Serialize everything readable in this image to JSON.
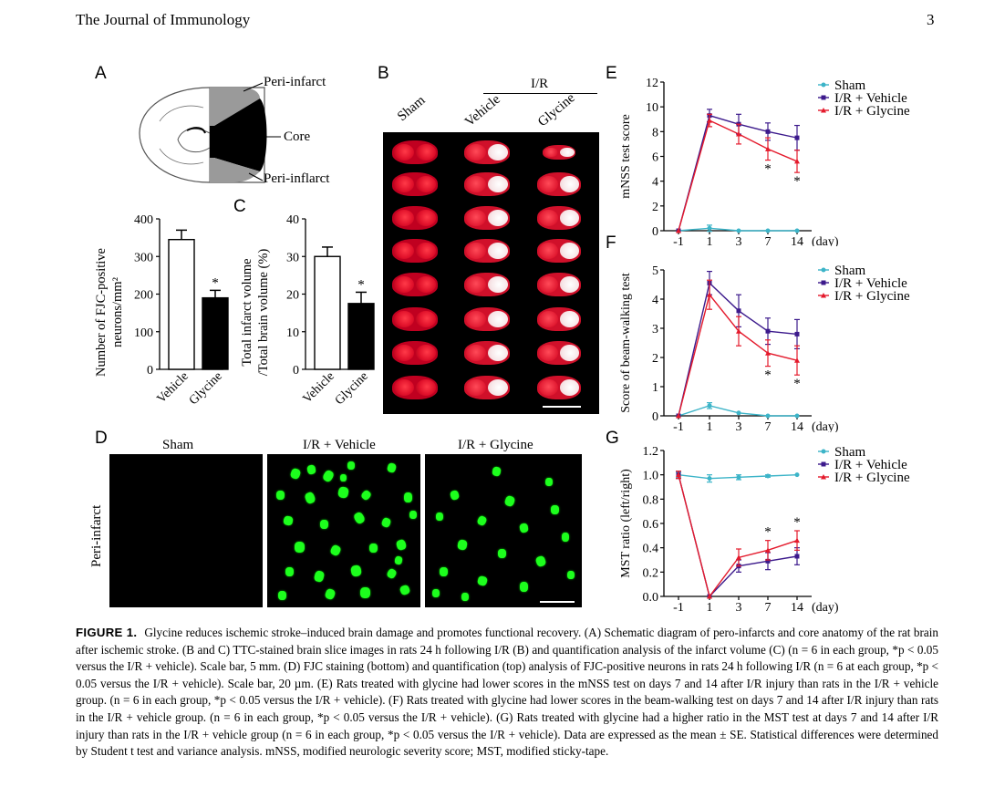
{
  "header": {
    "journal": "The Journal of Immunology",
    "page": "3"
  },
  "panel_labels": {
    "A": "A",
    "B": "B",
    "C": "C",
    "D": "D",
    "E": "E",
    "F": "F",
    "G": "G"
  },
  "panelA": {
    "label_top": "Peri-infarct",
    "label_core": "Core",
    "label_bottom": "Peri-inflarct"
  },
  "panelB": {
    "group_header": "I/R",
    "columns": [
      "Sham",
      "Vehicle",
      "Glycine"
    ]
  },
  "panelD": {
    "columns": [
      "Sham",
      "I/R + Vehicle",
      "I/R + Glycine"
    ],
    "row_label": "Peri-infarct"
  },
  "caption": {
    "figure_label": "FIGURE 1.",
    "text": "Glycine reduces ischemic stroke–induced brain damage and promotes functional recovery. (A) Schematic diagram of pero-infarcts and core anatomy of the rat brain after ischemic stroke. (B and C) TTC-stained brain slice images in rats 24 h following I/R (B) and quantification analysis of the infarct volume (C) (n = 6 in each group, *p < 0.05 versus the I/R + vehicle). Scale bar, 5 mm. (D) FJC staining (bottom) and quantification (top) analysis of FJC-positive neurons in rats 24 h following I/R (n = 6 at each group, *p < 0.05 versus the I/R + vehicle). Scale bar, 20 µm. (E) Rats treated with glycine had lower scores in the mNSS test on days 7 and 14 after I/R injury than rats in the I/R + vehicle group. (n = 6 in each group, *p < 0.05 versus the I/R + vehicle). (F) Rats treated with glycine had lower scores in the beam-walking test on days 7 and 14 after I/R injury than rats in the I/R + vehicle group. (n = 6 in each group, *p < 0.05 versus the I/R + vehicle). (G) Rats treated with glycine had a higher ratio in the MST test at days 7 and 14 after I/R injury than rats in the I/R + vehicle group (n = 6 in each group, *p < 0.05 versus the I/R + vehicle). Data are expressed as the mean ± SE. Statistical differences were determined by Student t test and variance analysis. mNSS, modified neurologic severity score; MST, modified sticky-tape."
  },
  "colors": {
    "sham": "#3cb4c8",
    "vehicle": "#3c1a8c",
    "glycine": "#e41a2c"
  },
  "chart_data": [
    {
      "panel": "A-bar",
      "type": "bar",
      "categories": [
        "Vehicle",
        "Glycine"
      ],
      "values": [
        345,
        190
      ],
      "errors": [
        25,
        20
      ],
      "ylabel": "Number of FJC-positive neurons/mm²",
      "ylim": [
        0,
        400
      ],
      "yticks": [
        "0",
        "100",
        "200",
        "300",
        "400"
      ],
      "annotation": "*"
    },
    {
      "panel": "C",
      "type": "bar",
      "categories": [
        "Vehicle",
        "Glycine"
      ],
      "values": [
        30,
        17.5
      ],
      "errors": [
        2.5,
        3
      ],
      "ylabel": "Total infarct volume /Total brain volume (%)",
      "ylim": [
        0,
        40
      ],
      "yticks": [
        "0",
        "10",
        "20",
        "30",
        "40"
      ],
      "annotation": "*"
    },
    {
      "panel": "E",
      "type": "line",
      "x": [
        "-1",
        "1",
        "3",
        "7",
        "14"
      ],
      "xunit": "(day)",
      "ylabel": "mNSS test score",
      "ylim": [
        0,
        12
      ],
      "yticks": [
        "0",
        "2",
        "4",
        "6",
        "8",
        "10",
        "12"
      ],
      "series": [
        {
          "name": "Sham",
          "values": [
            0,
            0.2,
            0,
            0,
            0
          ],
          "errors": [
            0,
            0.25,
            0,
            0,
            0
          ]
        },
        {
          "name": "I/R + Vehicle",
          "values": [
            0,
            9.3,
            8.6,
            8.0,
            7.5
          ],
          "errors": [
            0,
            0.5,
            0.8,
            0.7,
            1.0
          ]
        },
        {
          "name": "I/R + Glycine",
          "values": [
            0,
            8.9,
            7.8,
            6.6,
            5.6
          ],
          "errors": [
            0,
            0.5,
            0.8,
            0.9,
            0.9
          ]
        }
      ],
      "annotations": [
        {
          "x": "7",
          "text": "*"
        },
        {
          "x": "14",
          "text": "*"
        }
      ]
    },
    {
      "panel": "F",
      "type": "line",
      "x": [
        "-1",
        "1",
        "3",
        "7",
        "14"
      ],
      "xunit": "(day)",
      "ylabel": "Score of beam-walking test",
      "ylim": [
        0,
        5
      ],
      "yticks": [
        "0",
        "1",
        "2",
        "3",
        "4",
        "5"
      ],
      "series": [
        {
          "name": "Sham",
          "values": [
            0,
            0.35,
            0.1,
            0,
            0
          ],
          "errors": [
            0,
            0.1,
            0,
            0,
            0
          ]
        },
        {
          "name": "I/R + Vehicle",
          "values": [
            0,
            4.55,
            3.6,
            2.9,
            2.8
          ],
          "errors": [
            0,
            0.4,
            0.55,
            0.45,
            0.5
          ]
        },
        {
          "name": "I/R + Glycine",
          "values": [
            0,
            4.15,
            2.9,
            2.15,
            1.9
          ],
          "errors": [
            0,
            0.5,
            0.5,
            0.45,
            0.5
          ]
        }
      ],
      "annotations": [
        {
          "x": "7",
          "text": "*"
        },
        {
          "x": "14",
          "text": "*"
        }
      ]
    },
    {
      "panel": "G",
      "type": "line",
      "x": [
        "-1",
        "1",
        "3",
        "7",
        "14"
      ],
      "xunit": "(day)",
      "ylabel": "MST ratio (left/right)",
      "ylim": [
        0,
        1.2
      ],
      "yticks": [
        "0.0",
        "0.2",
        "0.4",
        "0.6",
        "0.8",
        "1.0",
        "1.2"
      ],
      "series": [
        {
          "name": "Sham",
          "values": [
            1.0,
            0.97,
            0.98,
            0.99,
            1.0
          ],
          "errors": [
            0.02,
            0.03,
            0.02,
            0.01,
            0
          ]
        },
        {
          "name": "I/R + Vehicle",
          "values": [
            1.0,
            0,
            0.25,
            0.29,
            0.33
          ],
          "errors": [
            0.03,
            0,
            0.05,
            0.07,
            0.07
          ]
        },
        {
          "name": "I/R + Glycine",
          "values": [
            1.0,
            0,
            0.32,
            0.38,
            0.46
          ],
          "errors": [
            0.03,
            0,
            0.07,
            0.08,
            0.08
          ]
        }
      ],
      "annotations": [
        {
          "x": "7",
          "text": "*"
        },
        {
          "x": "14",
          "text": "*"
        }
      ]
    }
  ]
}
